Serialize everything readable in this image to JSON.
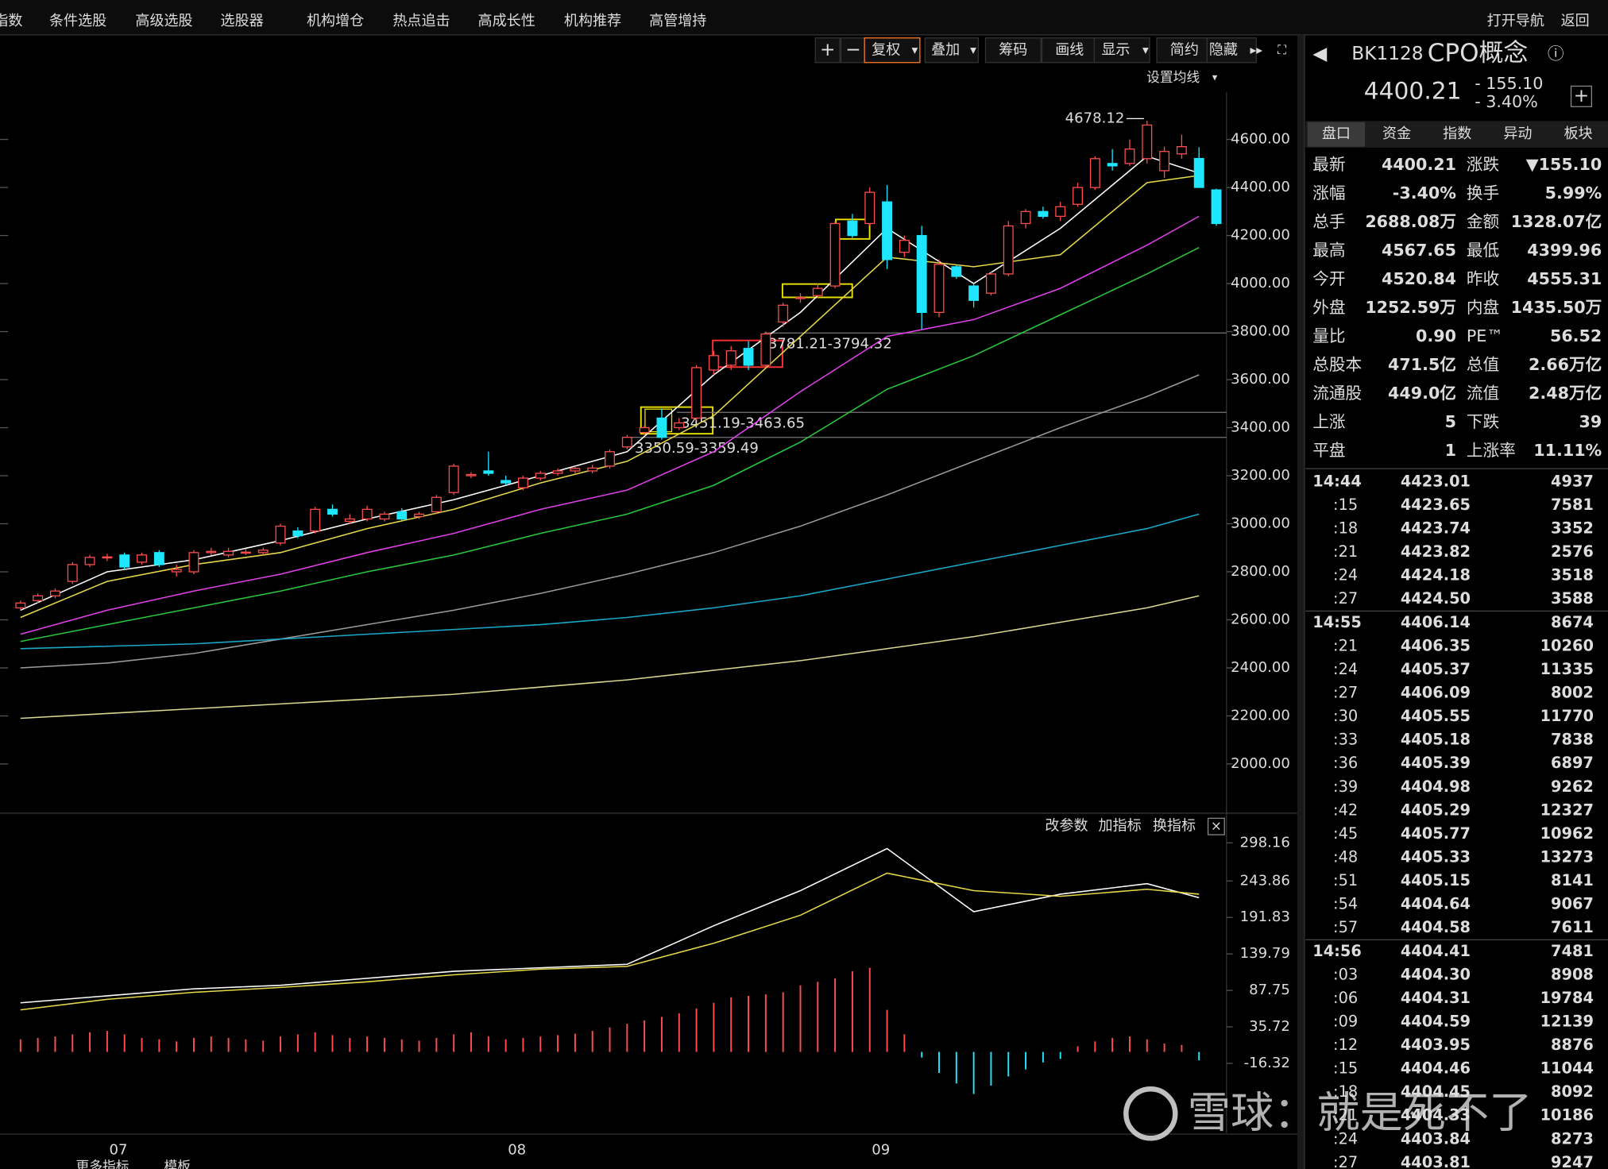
{
  "menu": {
    "items": [
      "指数",
      "条件选股",
      "高级选股",
      "选股器",
      "机构增仓",
      "热点追击",
      "高成长性",
      "机构推荐",
      "高管增持"
    ],
    "right": [
      "打开导航",
      "返回"
    ]
  },
  "toolbar": [
    "+",
    "−",
    "复权",
    "叠加",
    "筹码",
    "画线",
    "显示",
    "简约",
    "隐藏"
  ],
  "ma_setting": "设置均线",
  "indicator_buttons": [
    "改参数",
    "加指标",
    "换指标"
  ],
  "bottom_tabs": [
    "更多指标",
    "模板"
  ],
  "watermark": "雪球：就是死不了",
  "quote": {
    "code": "BK1128",
    "name": "CPO概念",
    "price": "4400.21",
    "change": "- 155.10",
    "pct": "- 3.40%",
    "tabs": [
      "盘口",
      "资金",
      "指数",
      "异动",
      "板块"
    ],
    "rows": [
      [
        "最新",
        "4400.21",
        "#3fdc5a",
        "涨跌",
        "▼155.10",
        "#3fdc5a"
      ],
      [
        "涨幅",
        "-3.40%",
        "#3fdc5a",
        "换手",
        "5.99%",
        "#ffffff"
      ],
      [
        "总手",
        "2688.08万",
        "#ffffff",
        "金额",
        "1328.07亿",
        "#1ee6ff"
      ],
      [
        "最高",
        "4567.65",
        "#ff4d4d",
        "最低",
        "4399.96",
        "#3fdc5a"
      ],
      [
        "今开",
        "4520.84",
        "#3fdc5a",
        "昨收",
        "4555.31",
        "#ffffff"
      ],
      [
        "外盘",
        "1252.59万",
        "#ff4d4d",
        "内盘",
        "1435.50万",
        "#3fdc5a"
      ],
      [
        "量比",
        "0.90",
        "#ffffff",
        "PE™",
        "56.52",
        "#ffffff"
      ],
      [
        "总股本",
        "471.5亿",
        "#ffffff",
        "总值",
        "2.66万亿",
        "#ffffff"
      ],
      [
        "流通股",
        "449.0亿",
        "#ffffff",
        "流值",
        "2.48万亿",
        "#ffffff"
      ],
      [
        "上涨",
        "5",
        "#ff4d4d",
        "下跌",
        "39",
        "#3fdc5a"
      ],
      [
        "平盘",
        "1",
        "#ffffff",
        "上涨率",
        "11.11%",
        "#ffffff"
      ]
    ],
    "price_color": "#3fdc5a",
    "ticks": [
      [
        "14:44",
        "4423.01",
        "4937",
        "#ff4d4d"
      ],
      [
        ":15",
        "4423.65",
        "7581",
        "#ff4d4d"
      ],
      [
        ":18",
        "4423.74",
        "3352",
        "#ff4d4d"
      ],
      [
        ":21",
        "4423.82",
        "2576",
        "#ff4d4d"
      ],
      [
        ":24",
        "4424.18",
        "3518",
        "#ff4d4d"
      ],
      [
        ":27",
        "4424.50",
        "3588",
        "#ff4d4d"
      ],
      [
        "14:55",
        "4406.14",
        "8674",
        "#3fdc5a"
      ],
      [
        ":21",
        "4406.35",
        "10260",
        "#ff4d4d"
      ],
      [
        ":24",
        "4405.37",
        "11335",
        "#3fdc5a"
      ],
      [
        ":27",
        "4406.09",
        "8002",
        "#ff4d4d"
      ],
      [
        ":30",
        "4405.55",
        "11770",
        "#3fdc5a"
      ],
      [
        ":33",
        "4405.18",
        "7838",
        "#3fdc5a"
      ],
      [
        ":36",
        "4405.39",
        "6897",
        "#ff4d4d"
      ],
      [
        ":39",
        "4404.98",
        "9262",
        "#3fdc5a"
      ],
      [
        ":42",
        "4405.29",
        "12327",
        "#ff4d4d"
      ],
      [
        ":45",
        "4405.77",
        "10962",
        "#ff4d4d"
      ],
      [
        ":48",
        "4405.33",
        "13273",
        "#3fdc5a"
      ],
      [
        ":51",
        "4405.15",
        "8141",
        "#3fdc5a"
      ],
      [
        ":54",
        "4404.64",
        "9067",
        "#3fdc5a"
      ],
      [
        ":57",
        "4404.58",
        "7611",
        "#3fdc5a"
      ],
      [
        "14:56",
        "4404.41",
        "7481",
        "#3fdc5a"
      ],
      [
        ":03",
        "4404.30",
        "8908",
        "#3fdc5a"
      ],
      [
        ":06",
        "4404.31",
        "19784",
        "#ff4d4d"
      ],
      [
        ":09",
        "4404.59",
        "12139",
        "#ff4d4d"
      ],
      [
        ":12",
        "4403.95",
        "8876",
        "#3fdc5a"
      ],
      [
        ":15",
        "4404.46",
        "11044",
        "#ff4d4d"
      ],
      [
        ":18",
        "4404.45",
        "8092",
        "#3fdc5a"
      ],
      [
        ":21",
        "4404.33",
        "10186",
        "#3fdc5a"
      ],
      [
        ":24",
        "4403.84",
        "8273",
        "#3fdc5a"
      ],
      [
        ":27",
        "4403.81",
        "9247",
        "#3fdc5a"
      ]
    ]
  },
  "chart_data": [
    {
      "type": "candlestick",
      "categories": [
        null,
        null,
        null,
        null,
        null,
        null,
        "07",
        null,
        null,
        null,
        null,
        null,
        null,
        null,
        null,
        null,
        null,
        null,
        null,
        null,
        null,
        null,
        null,
        null,
        null,
        null,
        null,
        null,
        null,
        "08",
        null,
        null,
        null,
        null,
        null,
        null,
        null,
        null,
        null,
        null,
        null,
        null,
        null,
        null,
        null,
        null,
        null,
        null,
        null,
        null,
        "09",
        null,
        null,
        null,
        null,
        null,
        null,
        null,
        null,
        null,
        null,
        null,
        null,
        null,
        null,
        null,
        null,
        null,
        null,
        null
      ],
      "open": [
        2650,
        2680,
        2700,
        2760,
        2830,
        2860,
        2870,
        2840,
        2880,
        2800,
        2800,
        2880,
        2870,
        2880,
        2880,
        2920,
        2970,
        2970,
        3060,
        3010,
        3020,
        3020,
        3050,
        3030,
        3050,
        3130,
        3200,
        3220,
        3180,
        3150,
        3190,
        3210,
        3220,
        3220,
        3240,
        3320,
        3380,
        3440,
        3400,
        3440,
        3640,
        3660,
        3730,
        3660,
        3840,
        3940,
        3950,
        3990,
        4260,
        4250,
        4340,
        4130,
        4200,
        3880,
        4070,
        3990,
        3960,
        4040,
        4250,
        4300,
        4280,
        4330,
        4400,
        4500,
        4500,
        4520,
        4470,
        4540,
        4520.84,
        4390
      ],
      "high": [
        2680,
        2710,
        2730,
        2840,
        2870,
        2875,
        2880,
        2880,
        2890,
        2830,
        2890,
        2900,
        2900,
        2895,
        2900,
        3000,
        2985,
        3070,
        3080,
        3040,
        3075,
        3050,
        3065,
        3050,
        3120,
        3250,
        3215,
        3300,
        3200,
        3200,
        3220,
        3230,
        3240,
        3245,
        3310,
        3370,
        3410,
        3480,
        3440,
        3660,
        3720,
        3740,
        3760,
        3800,
        3920,
        3960,
        4000,
        4260,
        4290,
        4400,
        4410,
        4200,
        4240,
        4100,
        4080,
        4000,
        4050,
        4260,
        4310,
        4320,
        4340,
        4420,
        4530,
        4560,
        4600,
        4678.12,
        4570,
        4620,
        4567.65,
        4395
      ],
      "low": [
        2640,
        2670,
        2690,
        2750,
        2820,
        2845,
        2810,
        2830,
        2820,
        2780,
        2790,
        2870,
        2860,
        2870,
        2870,
        2910,
        2940,
        2960,
        3030,
        3000,
        3010,
        3010,
        3010,
        3020,
        3040,
        3120,
        3190,
        3200,
        3160,
        3140,
        3180,
        3200,
        3210,
        3210,
        3230,
        3310,
        3370,
        3350,
        3390,
        3430,
        3620,
        3640,
        3640,
        3650,
        3820,
        3920,
        3940,
        3980,
        4190,
        4240,
        4060,
        4110,
        3810,
        3860,
        4020,
        3900,
        3950,
        4030,
        4230,
        4270,
        4260,
        4320,
        4390,
        4470,
        4490,
        4500,
        4440,
        4520,
        4399.96,
        4240
      ],
      "close": [
        2670,
        2700,
        2720,
        2830,
        2860,
        2862,
        2820,
        2870,
        2830,
        2810,
        2880,
        2885,
        2885,
        2882,
        2890,
        2990,
        2950,
        3060,
        3040,
        3020,
        3060,
        3040,
        3020,
        3040,
        3110,
        3240,
        3205,
        3210,
        3170,
        3190,
        3210,
        3220,
        3230,
        3232,
        3300,
        3360,
        3400,
        3360,
        3420,
        3650,
        3700,
        3720,
        3660,
        3790,
        3910,
        3942,
        3980,
        4250,
        4200,
        4380,
        4100,
        4180,
        3880,
        4080,
        4030,
        3930,
        4040,
        4240,
        4300,
        4280,
        4320,
        4400,
        4520,
        4490,
        4560,
        4660,
        4550,
        4570,
        4400.21,
        4250
      ],
      "up_color": "#ff4d4d",
      "down_color": "#1ee6ff",
      "series": [
        {
          "color": "#ffffff",
          "x": [
            0,
            5,
            10,
            15,
            20,
            25,
            30,
            35,
            40,
            45,
            50,
            55,
            60,
            65,
            68
          ],
          "values": [
            2640,
            2800,
            2850,
            2930,
            3020,
            3100,
            3200,
            3300,
            3620,
            3880,
            4230,
            4000,
            4230,
            4530,
            4460
          ]
        },
        {
          "color": "#e6d84a",
          "x": [
            0,
            5,
            10,
            15,
            20,
            25,
            30,
            35,
            40,
            45,
            50,
            55,
            60,
            65,
            68
          ],
          "values": [
            2610,
            2760,
            2830,
            2880,
            2980,
            3060,
            3170,
            3260,
            3450,
            3780,
            4110,
            4070,
            4120,
            4420,
            4450
          ]
        },
        {
          "color": "#e040e8",
          "x": [
            0,
            5,
            10,
            15,
            20,
            25,
            30,
            35,
            40,
            45,
            50,
            55,
            60,
            65,
            68
          ],
          "values": [
            2540,
            2640,
            2720,
            2790,
            2880,
            2960,
            3060,
            3140,
            3300,
            3550,
            3780,
            3850,
            3980,
            4160,
            4280
          ]
        },
        {
          "color": "#28c83c",
          "x": [
            0,
            5,
            10,
            15,
            20,
            25,
            30,
            35,
            40,
            45,
            50,
            55,
            60,
            65,
            68
          ],
          "values": [
            2510,
            2580,
            2650,
            2720,
            2800,
            2870,
            2960,
            3040,
            3160,
            3340,
            3560,
            3700,
            3870,
            4040,
            4150
          ]
        },
        {
          "color": "#9a9a9a",
          "x": [
            0,
            5,
            10,
            15,
            20,
            25,
            30,
            35,
            40,
            45,
            50,
            55,
            60,
            65,
            68
          ],
          "values": [
            2400,
            2420,
            2460,
            2520,
            2580,
            2640,
            2710,
            2790,
            2880,
            2990,
            3120,
            3260,
            3400,
            3530,
            3620
          ]
        },
        {
          "color": "#1aa8c8",
          "x": [
            0,
            5,
            10,
            15,
            20,
            25,
            30,
            35,
            40,
            45,
            50,
            55,
            60,
            65,
            68
          ],
          "values": [
            2480,
            2490,
            2500,
            2520,
            2540,
            2560,
            2580,
            2610,
            2650,
            2700,
            2770,
            2840,
            2910,
            2980,
            3040
          ]
        },
        {
          "color": "#d8d890",
          "x": [
            0,
            5,
            10,
            15,
            20,
            25,
            30,
            35,
            40,
            45,
            50,
            55,
            60,
            65,
            68
          ],
          "values": [
            2190,
            2210,
            2230,
            2250,
            2270,
            2290,
            2320,
            2350,
            2390,
            2430,
            2480,
            2530,
            2590,
            2650,
            2700
          ]
        }
      ],
      "peak": 4678.12,
      "levels": [
        {
          "value": 3794.32,
          "label": "3781.21-3794.32"
        },
        {
          "value": 3463.65,
          "label": "3451.19-3463.65"
        },
        {
          "value": 3359.49,
          "label": "3350.59-3359.49"
        }
      ],
      "ylim": [
        1807.9,
        4775
      ],
      "yticks": [
        {
          "value": 2000,
          "label": "2000.00"
        },
        {
          "value": 2200,
          "label": "2200.00"
        },
        {
          "value": 2400,
          "label": "2400.00"
        },
        {
          "value": 2600,
          "label": "2600.00"
        },
        {
          "value": 2800,
          "label": "2800.00"
        },
        {
          "value": 3000,
          "label": "3000.00"
        },
        {
          "value": 3200,
          "label": "3200.00"
        },
        {
          "value": 3400,
          "label": "3400.00"
        },
        {
          "value": 3600,
          "label": "3600.00"
        },
        {
          "value": 3800,
          "label": "3800.00"
        },
        {
          "value": 4000,
          "label": "4000.00"
        },
        {
          "value": 4200,
          "label": "4200.00"
        },
        {
          "value": 4400,
          "label": "4400.00"
        },
        {
          "value": 4600,
          "label": "4600.00"
        }
      ]
    },
    {
      "type": "indicator",
      "series": [
        {
          "color": "#ffffff",
          "x": [
            0,
            5,
            10,
            15,
            20,
            25,
            30,
            35,
            40,
            45,
            50,
            55,
            60,
            65,
            68
          ],
          "values": [
            70,
            80,
            90,
            95,
            105,
            115,
            120,
            125,
            180,
            230,
            290,
            200,
            225,
            240,
            220
          ]
        },
        {
          "color": "#e6d84a",
          "x": [
            0,
            5,
            10,
            15,
            20,
            25,
            30,
            35,
            40,
            45,
            50,
            55,
            60,
            65,
            68
          ],
          "values": [
            60,
            75,
            85,
            92,
            100,
            110,
            118,
            122,
            155,
            195,
            255,
            230,
            222,
            232,
            225
          ]
        }
      ],
      "bars": [
        18,
        20,
        22,
        25,
        28,
        30,
        25,
        20,
        18,
        15,
        20,
        22,
        20,
        18,
        16,
        22,
        25,
        28,
        24,
        20,
        22,
        20,
        18,
        16,
        20,
        25,
        28,
        22,
        18,
        20,
        22,
        24,
        26,
        30,
        35,
        40,
        45,
        50,
        55,
        62,
        70,
        78,
        80,
        82,
        85,
        95,
        100,
        105,
        115,
        120,
        60,
        25,
        -8,
        -30,
        -45,
        -60,
        -48,
        -35,
        -25,
        -15,
        -10,
        8,
        15,
        20,
        22,
        18,
        12,
        10,
        -12,
        null
      ],
      "up_color": "#ff4d4d",
      "down_color": "#1ee6ff",
      "ylim": [
        -115.8,
        330.3
      ],
      "yticks": [
        298.16,
        243.86,
        191.83,
        139.79,
        87.75,
        35.72,
        -16.32
      ]
    }
  ]
}
